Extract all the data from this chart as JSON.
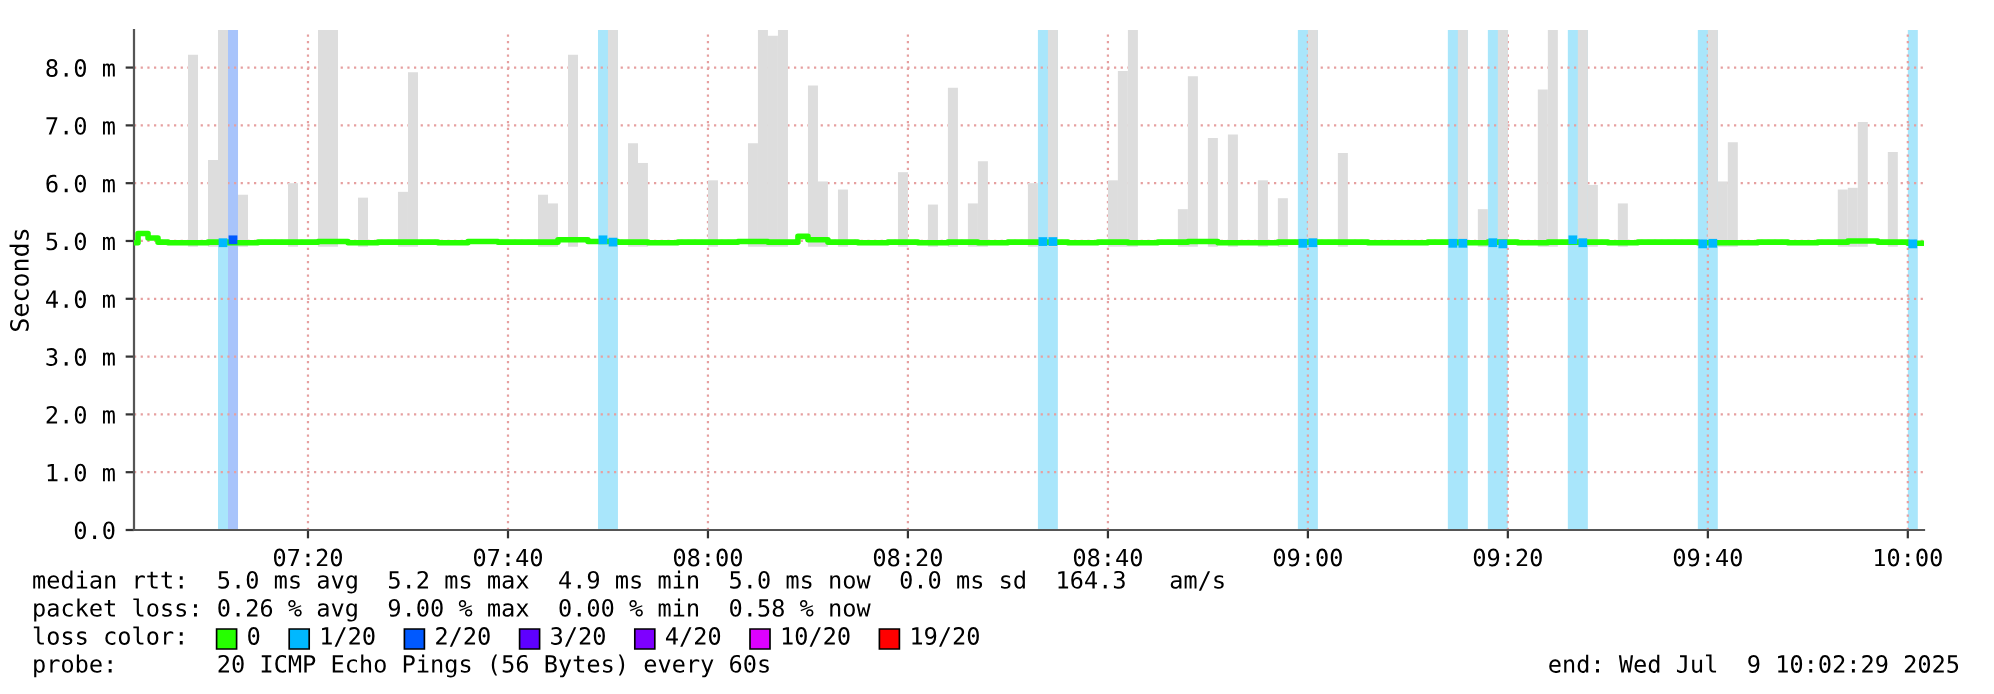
{
  "chart_data": {
    "type": "bar",
    "ylabel": "Seconds",
    "xlim": [
      7.0433,
      10.027
    ],
    "ylim": [
      0,
      8.65
    ],
    "xticks": [
      {
        "value": 7.3333,
        "label": "07:20"
      },
      {
        "value": 7.6667,
        "label": "07:40"
      },
      {
        "value": 8,
        "label": "08:00"
      },
      {
        "value": 8.3333,
        "label": "08:20"
      },
      {
        "value": 8.6667,
        "label": "08:40"
      },
      {
        "value": 9,
        "label": "09:00"
      },
      {
        "value": 9.3333,
        "label": "09:20"
      },
      {
        "value": 9.6667,
        "label": "09:40"
      },
      {
        "value": 10,
        "label": "10:00"
      }
    ],
    "yticks": [
      {
        "value": 0,
        "label": "0.0"
      },
      {
        "value": 1,
        "label": "1.0 m"
      },
      {
        "value": 2,
        "label": "2.0 m"
      },
      {
        "value": 3,
        "label": "3.0 m"
      },
      {
        "value": 4,
        "label": "4.0 m"
      },
      {
        "value": 5,
        "label": "5.0 m"
      },
      {
        "value": 6,
        "label": "6.0 m"
      },
      {
        "value": 7,
        "label": "7.0 m"
      },
      {
        "value": 8,
        "label": "8.0 m"
      }
    ],
    "grid": true,
    "legend": "bottom left",
    "legend_title": "loss color:",
    "series": [
      {
        "color": "#dddddd",
        "x": [
          7.1333,
          7.1667,
          7.1833,
          7.2167,
          7.3,
          7.35,
          7.3667,
          7.4167,
          7.4833,
          7.5,
          7.7167,
          7.7333,
          7.7667,
          7.8333,
          7.8667,
          7.8833,
          8.0,
          8.0667,
          8.0833,
          8.1,
          8.1167,
          8.1667,
          8.1833,
          8.2167,
          8.3167,
          8.3667,
          8.4,
          8.4333,
          8.45,
          8.5333,
          8.5667,
          8.6667,
          8.6833,
          8.7,
          8.7833,
          8.8,
          8.8333,
          8.8667,
          8.9167,
          8.95,
          9.0,
          9.05,
          9.25,
          9.2833,
          9.3167,
          9.3833,
          9.4,
          9.45,
          9.4667,
          9.5167,
          9.6667,
          9.6833,
          9.7,
          9.8833,
          9.9,
          9.9167,
          9.9667
        ],
        "base": [
          4.9,
          4.9,
          4.9,
          4.9,
          4.9,
          4.9,
          4.9,
          4.9,
          4.9,
          4.9,
          4.9,
          4.9,
          4.9,
          4.9,
          4.9,
          4.9,
          4.9,
          4.9,
          4.9,
          4.9,
          4.9,
          4.9,
          4.9,
          4.9,
          4.9,
          4.9,
          4.9,
          4.9,
          4.9,
          4.9,
          4.9,
          4.9,
          4.9,
          4.9,
          4.9,
          4.9,
          4.9,
          4.9,
          4.9,
          4.9,
          4.9,
          4.9,
          4.9,
          4.9,
          4.9,
          4.9,
          4.9,
          4.9,
          4.9,
          4.9,
          4.9,
          4.9,
          4.9,
          4.9,
          4.9,
          4.9,
          4.9
        ],
        "values": [
          3.32,
          1.5,
          3.75,
          0.9,
          1.1,
          3.75,
          3.75,
          0.85,
          0.95,
          3.02,
          0.9,
          0.75,
          3.32,
          3.75,
          1.79,
          1.45,
          1.15,
          1.79,
          3.75,
          3.65,
          3.75,
          2.79,
          1.13,
          0.99,
          1.29,
          0.73,
          2.75,
          0.75,
          1.48,
          1.1,
          3.75,
          1.15,
          3.04,
          3.75,
          0.65,
          2.95,
          1.88,
          1.94,
          1.15,
          0.84,
          3.75,
          1.62,
          3.75,
          0.65,
          3.75,
          2.72,
          3.75,
          3.75,
          1.07,
          0.75,
          3.75,
          1.13,
          1.81,
          0.99,
          1.02,
          2.16,
          1.64
        ]
      },
      {
        "type": "step",
        "name": "0",
        "color": "#26ff00",
        "x": [
          7.0433,
          7.05,
          7.0667,
          7.0833,
          7.1,
          7.1667,
          7.2,
          7.25,
          7.3,
          7.35,
          7.4,
          7.45,
          7.5,
          7.55,
          7.6,
          7.65,
          7.7,
          7.75,
          7.8,
          7.85,
          7.9,
          7.95,
          8.0,
          8.05,
          8.1,
          8.15,
          8.1667,
          8.2,
          8.25,
          8.3,
          8.35,
          8.4,
          8.45,
          8.5,
          8.55,
          8.6,
          8.65,
          8.7,
          8.75,
          8.8,
          8.85,
          8.9,
          8.95,
          9.0,
          9.05,
          9.1,
          9.15,
          9.2,
          9.25,
          9.3,
          9.35,
          9.4,
          9.45,
          9.5,
          9.55,
          9.6,
          9.65,
          9.7,
          9.75,
          9.8,
          9.85,
          9.9,
          9.95,
          10.0,
          10.027
        ],
        "values": [
          4.97,
          5.13,
          5.05,
          4.98,
          4.97,
          4.98,
          4.97,
          4.98,
          4.98,
          4.99,
          4.97,
          4.98,
          4.98,
          4.97,
          4.99,
          4.98,
          4.98,
          5.02,
          4.99,
          4.98,
          4.97,
          4.98,
          4.98,
          4.99,
          4.98,
          5.08,
          5.02,
          4.98,
          4.97,
          4.98,
          4.97,
          4.98,
          4.97,
          4.98,
          4.98,
          4.97,
          4.98,
          4.97,
          4.98,
          4.99,
          4.97,
          4.97,
          4.98,
          4.98,
          4.98,
          4.97,
          4.97,
          4.98,
          4.97,
          4.98,
          4.97,
          4.98,
          4.98,
          4.97,
          4.98,
          4.98,
          4.97,
          4.97,
          4.98,
          4.97,
          4.98,
          5.0,
          4.98,
          4.96,
          4.96
        ]
      },
      {
        "type": "scatter",
        "name": "1/20",
        "color": "#00b8ff",
        "marker": "square",
        "x": [
          7.1917,
          7.825,
          7.8417,
          8.5583,
          8.575,
          8.9917,
          9.0083,
          9.2417,
          9.2583,
          9.3083,
          9.325,
          9.4417,
          9.4583,
          9.6583,
          9.675,
          10.0083
        ],
        "values": [
          4.97,
          5.02,
          4.98,
          4.99,
          4.99,
          4.96,
          4.97,
          4.96,
          4.96,
          4.97,
          4.95,
          5.02,
          4.97,
          4.95,
          4.96,
          4.95
        ]
      },
      {
        "type": "scatter",
        "name": "2/20",
        "color": "#0059ff",
        "marker": "square",
        "x": [
          7.2083
        ],
        "values": [
          5.02
        ]
      },
      {
        "type": "scatter",
        "name": "3/20",
        "color": "#5e00ff"
      },
      {
        "type": "scatter",
        "name": "4/20",
        "color": "#7e00ff"
      },
      {
        "type": "scatter",
        "name": "10/20",
        "color": "#dd00ff"
      },
      {
        "type": "scatter",
        "name": "19/20",
        "color": "#ff0000"
      }
    ],
    "bands": [
      {
        "axis": "x",
        "from": 7.1833,
        "to": 7.2,
        "color": "#a9e6fb"
      },
      {
        "axis": "x",
        "from": 7.2,
        "to": 7.2167,
        "color": "#a8c4fb"
      },
      {
        "axis": "x",
        "from": 7.8167,
        "to": 7.85,
        "color": "#a9e6fb"
      },
      {
        "axis": "x",
        "from": 8.55,
        "to": 8.5833,
        "color": "#a9e6fb"
      },
      {
        "axis": "x",
        "from": 8.9833,
        "to": 9.0167,
        "color": "#a9e6fb"
      },
      {
        "axis": "x",
        "from": 9.2333,
        "to": 9.2667,
        "color": "#a9e6fb"
      },
      {
        "axis": "x",
        "from": 9.3,
        "to": 9.3333,
        "color": "#a9e6fb"
      },
      {
        "axis": "x",
        "from": 9.4333,
        "to": 9.4667,
        "color": "#a9e6fb"
      },
      {
        "axis": "x",
        "from": 9.65,
        "to": 9.6833,
        "color": "#a9e6fb"
      },
      {
        "axis": "x",
        "from": 10.0,
        "to": 10.0167,
        "color": "#a9e6fb"
      }
    ],
    "annotations": [
      "median rtt:  5.0 ms avg  5.2 ms max  4.9 ms min  5.0 ms now  0.0 ms sd  164.3   am/s",
      "packet loss: 0.26 % avg  9.00 % max  0.00 % min  0.58 % now",
      "probe:       20 ICMP Echo Pings (56 Bytes) every 60s",
      "end: Wed Jul  9 10:02:29 2025"
    ]
  }
}
